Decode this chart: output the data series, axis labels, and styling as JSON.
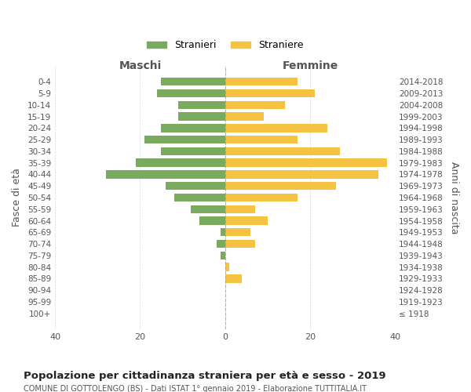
{
  "age_groups": [
    "100+",
    "95-99",
    "90-94",
    "85-89",
    "80-84",
    "75-79",
    "70-74",
    "65-69",
    "60-64",
    "55-59",
    "50-54",
    "45-49",
    "40-44",
    "35-39",
    "30-34",
    "25-29",
    "20-24",
    "15-19",
    "10-14",
    "5-9",
    "0-4"
  ],
  "birth_years": [
    "≤ 1918",
    "1919-1923",
    "1924-1928",
    "1929-1933",
    "1934-1938",
    "1939-1943",
    "1944-1948",
    "1949-1953",
    "1954-1958",
    "1959-1963",
    "1964-1968",
    "1969-1973",
    "1974-1978",
    "1979-1983",
    "1984-1988",
    "1989-1993",
    "1994-1998",
    "1999-2003",
    "2004-2008",
    "2009-2013",
    "2014-2018"
  ],
  "maschi": [
    0,
    0,
    0,
    0,
    0,
    1,
    2,
    1,
    6,
    8,
    12,
    14,
    28,
    21,
    15,
    19,
    15,
    11,
    11,
    16,
    15
  ],
  "femmine": [
    0,
    0,
    0,
    4,
    1,
    0,
    7,
    6,
    10,
    7,
    17,
    26,
    36,
    38,
    27,
    17,
    24,
    9,
    14,
    21,
    17
  ],
  "color_maschi": "#7aaa5e",
  "color_femmine": "#f5c242",
  "bg_color": "#ffffff",
  "grid_color": "#cccccc",
  "title": "Popolazione per cittadinanza straniera per età e sesso - 2019",
  "subtitle": "COMUNE DI GOTTOLENGO (BS) - Dati ISTAT 1° gennaio 2019 - Elaborazione TUTTITALIA.IT",
  "xlabel_left": "Maschi",
  "xlabel_right": "Femmine",
  "ylabel_left": "Fasce di età",
  "ylabel_right": "Anni di nascita",
  "legend_maschi": "Stranieri",
  "legend_femmine": "Straniere",
  "xlim": 40
}
